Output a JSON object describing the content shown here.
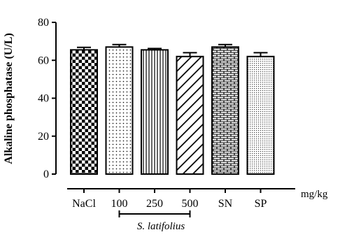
{
  "chart_data": {
    "type": "bar",
    "ylabel": "Alkaline phosphatase (U/L)",
    "xunit": "mg/kg",
    "ylim": [
      0,
      80
    ],
    "yticks": [
      0,
      20,
      40,
      60,
      80
    ],
    "categories": [
      "NaCl",
      "100",
      "250",
      "500",
      "SN",
      "SP"
    ],
    "values": [
      65.5,
      67,
      65.5,
      62,
      67,
      62
    ],
    "errors": [
      1.3,
      1.3,
      0.7,
      2.0,
      1.3,
      2.0
    ],
    "patterns": [
      "checker",
      "dots",
      "vertical-lines",
      "diagonal-lines",
      "brick",
      "fine-dots"
    ],
    "group": {
      "label": "S. latifolius",
      "categories": [
        "100",
        "250",
        "500"
      ]
    },
    "grid": false,
    "legend": "none"
  }
}
